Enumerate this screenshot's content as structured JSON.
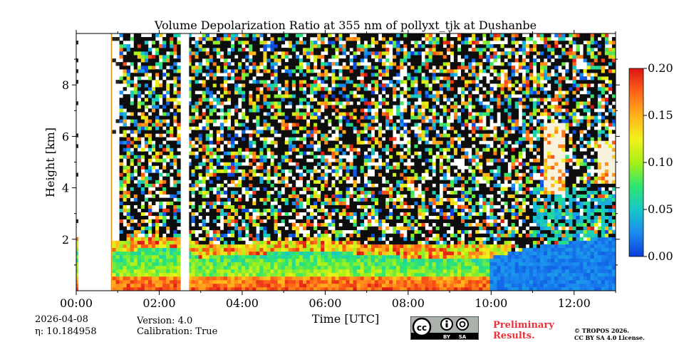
{
  "chart_data": {
    "type": "heatmap",
    "title": "Volume Depolarization Ratio at 355 nm of pollyxt_tjk at Dushanbe",
    "xlabel": "Time [UTC]",
    "ylabel": "Height [km]",
    "xlim": [
      0,
      13
    ],
    "ylim": [
      0,
      10
    ],
    "x_ticks": [
      0,
      2,
      4,
      6,
      8,
      10,
      12
    ],
    "x_tick_labels": [
      "00:00",
      "02:00",
      "04:00",
      "06:00",
      "08:00",
      "10:00",
      "12:00"
    ],
    "y_ticks": [
      2,
      4,
      6,
      8
    ],
    "y_tick_labels": [
      "2",
      "4",
      "6",
      "8"
    ],
    "colorbar": {
      "min": 0.0,
      "max": 0.2,
      "ticks": [
        0.0,
        0.05,
        0.1,
        0.15,
        0.2
      ],
      "tick_labels": [
        "0.00",
        "0.05",
        "0.10",
        "0.15",
        "0.20"
      ],
      "colors": [
        "#0b3cdc",
        "#1a8cf0",
        "#18c8c8",
        "#2ee66e",
        "#a8f018",
        "#f2f21a",
        "#ffb21c",
        "#ff6418",
        "#dc1414"
      ]
    },
    "boundary_layer_height_km": [
      [
        0,
        1.7
      ],
      [
        0.8,
        1.5
      ],
      [
        1.5,
        1.6
      ],
      [
        2.5,
        1.6
      ],
      [
        3.0,
        1.3
      ],
      [
        4.0,
        1.4
      ],
      [
        5.0,
        1.5
      ],
      [
        6.0,
        1.6
      ],
      [
        7.0,
        1.4
      ],
      [
        8.0,
        1.3
      ],
      [
        9.0,
        1.3
      ],
      [
        10.0,
        1.3
      ],
      [
        11.0,
        1.7
      ],
      [
        12.0,
        1.9
      ],
      [
        13.0,
        2.1
      ]
    ],
    "no_data_intervals_utc": [
      [
        0.05,
        0.85
      ],
      [
        2.55,
        2.72
      ]
    ],
    "cloud_patches": [
      {
        "time": 11.5,
        "height_min_km": 3.8,
        "height_max_km": 6.5
      },
      {
        "time": 12.8,
        "height_min_km": 4.2,
        "height_max_km": 5.8
      }
    ]
  },
  "meta": {
    "date": "2026-04-08",
    "eta": "η: 10.184958",
    "version": "Version: 4.0",
    "calibration": "Calibration: True"
  },
  "branding": {
    "preliminary_line1": "Preliminary",
    "preliminary_line2": "Results.",
    "copyright_line1": "© TROPOS 2026.",
    "copyright_line2": "CC BY SA 4.0 License.",
    "badge_cc": "cc",
    "badge_by": "BY",
    "badge_sa": "SA"
  }
}
